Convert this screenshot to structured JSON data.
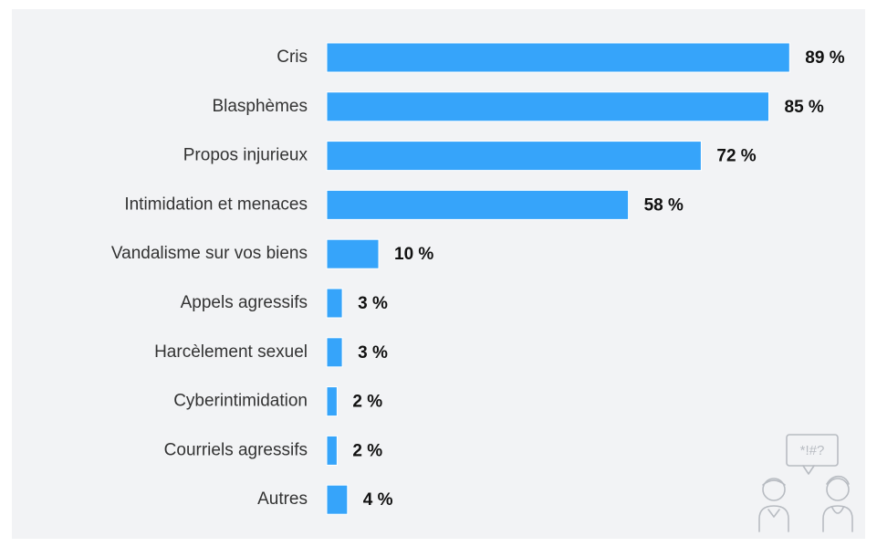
{
  "chart_data": {
    "type": "barh",
    "categories": [
      "Cris",
      "Blasphèmes",
      "Propos injurieux",
      "Intimidation et menaces",
      "Vandalisme sur vos biens",
      "Appels agressifs",
      "Harcèlement sexuel",
      "Cyberintimidation",
      "Courriels agressifs",
      "Autres"
    ],
    "values": [
      89,
      85,
      72,
      58,
      10,
      3,
      3,
      2,
      2,
      4
    ],
    "value_labels": [
      "89 %",
      "85 %",
      "72 %",
      "58 %",
      "10 %",
      "3 %",
      "3 %",
      "2 %",
      "2 %",
      "4 %"
    ],
    "color": "#36a4fa"
  },
  "icon": {
    "text": "*!#?"
  }
}
